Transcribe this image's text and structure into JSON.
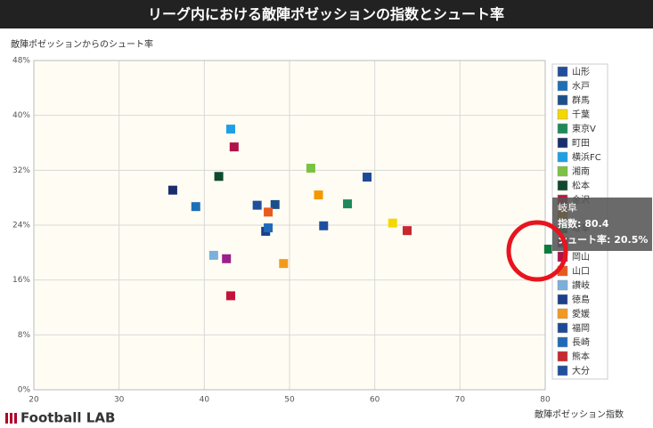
{
  "chart_data": {
    "type": "scatter",
    "title": "リーグ内における敵陣ポゼッションの指数とシュート率",
    "y_label": "敵陣ポゼッションからのシュート率",
    "x_label": "敵陣ポゼッション指数",
    "brand": "Football LAB",
    "xlim": [
      20,
      80
    ],
    "xticks": [
      20,
      30,
      40,
      50,
      60,
      70,
      80
    ],
    "ylim": [
      0,
      48
    ],
    "yticks": [
      {
        "value": 0,
        "label": "0%"
      },
      {
        "value": 8,
        "label": "8%"
      },
      {
        "value": 16,
        "label": "16%"
      },
      {
        "value": 24,
        "label": "24%"
      },
      {
        "value": 32,
        "label": "32%"
      },
      {
        "value": 40,
        "label": "40%"
      },
      {
        "value": 48,
        "label": "48%"
      }
    ],
    "grid": true,
    "legend": "right",
    "tooltip": [
      "岐阜",
      "指数: 80.4",
      "シュート率: 20.5%"
    ],
    "series": [
      {
        "name": "山形",
        "color": "#1f4e9c",
        "x": [
          46.2
        ],
        "values": [
          26.9
        ]
      },
      {
        "name": "水戸",
        "color": "#1e6fb8",
        "x": [
          39.0
        ],
        "values": [
          26.7
        ]
      },
      {
        "name": "群馬",
        "color": "#1a4f8a",
        "x": [
          48.3
        ],
        "values": [
          27.0
        ]
      },
      {
        "name": "千葉",
        "color": "#f5d800",
        "x": [
          62.1
        ],
        "values": [
          24.3
        ]
      },
      {
        "name": "東京V",
        "color": "#1e8a5c",
        "x": [
          56.8
        ],
        "values": [
          27.1
        ]
      },
      {
        "name": "町田",
        "color": "#1a2e6e",
        "x": [
          36.3
        ],
        "values": [
          29.1
        ]
      },
      {
        "name": "横浜FC",
        "color": "#1ea0e6",
        "x": [
          43.1
        ],
        "values": [
          38.0
        ]
      },
      {
        "name": "湘南",
        "color": "#7cc242",
        "x": [
          52.5
        ],
        "values": [
          32.3
        ]
      },
      {
        "name": "松本",
        "color": "#0f4a2c",
        "x": [
          41.7
        ],
        "values": [
          31.1
        ]
      },
      {
        "name": "金沢",
        "color": "#c4133a",
        "x": [
          43.1
        ],
        "values": [
          13.7
        ]
      },
      {
        "name": null,
        "color": "#f39800",
        "x": [
          53.4
        ],
        "values": [
          28.4
        ]
      },
      {
        "name": "岐阜",
        "color": "#0e7a3e",
        "x": [
          80.4
        ],
        "values": [
          20.5
        ]
      },
      {
        "name": null,
        "color": "#9c1f8a",
        "x": [
          42.6
        ],
        "values": [
          19.1
        ]
      },
      {
        "name": "岡山",
        "color": "#b0124a",
        "x": [
          43.5
        ],
        "values": [
          35.4
        ]
      },
      {
        "name": "山口",
        "color": "#e85a1e",
        "x": [
          47.5
        ],
        "values": [
          25.9
        ]
      },
      {
        "name": "讃岐",
        "color": "#7ab0dc",
        "x": [
          41.1
        ],
        "values": [
          19.6
        ]
      },
      {
        "name": "徳島",
        "color": "#1b3f8a",
        "x": [
          47.2
        ],
        "values": [
          23.1
        ]
      },
      {
        "name": "愛媛",
        "color": "#f29a1f",
        "x": [
          49.3
        ],
        "values": [
          18.4
        ]
      },
      {
        "name": "福岡",
        "color": "#1c4a96",
        "x": [
          59.1
        ],
        "values": [
          31.0
        ]
      },
      {
        "name": "長崎",
        "color": "#1f6ab8",
        "x": [
          47.5
        ],
        "values": [
          23.6
        ]
      },
      {
        "name": "熊本",
        "color": "#c8282e",
        "x": [
          63.8
        ],
        "values": [
          23.2
        ]
      },
      {
        "name": "大分",
        "color": "#1f4fa0",
        "x": [
          54.0
        ],
        "values": [
          23.9
        ]
      }
    ]
  }
}
